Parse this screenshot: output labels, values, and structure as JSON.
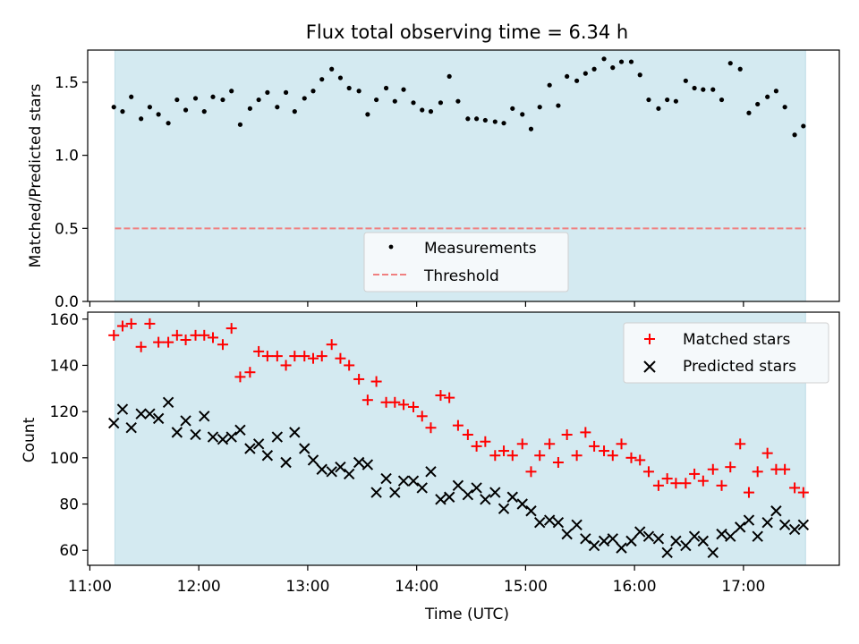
{
  "chart_data": [
    {
      "type": "scatter",
      "title": "Flux total observing time = 6.34 h",
      "xlabel": "",
      "ylabel": "Matched/Predicted stars",
      "ylim": [
        0.0,
        1.72
      ],
      "yticks": [
        0.0,
        0.5,
        1.0,
        1.5
      ],
      "ytick_labels": [
        "0.0",
        "0.5",
        "1.0",
        "1.5"
      ],
      "legend_placement": "lower-center",
      "shaded_span": {
        "start": 11.23,
        "end": 17.57,
        "color": "#d4eaf1"
      },
      "series": [
        {
          "name": "Measurements",
          "marker": "dot",
          "color": "#000000",
          "x": [
            11.22,
            11.3,
            11.38,
            11.47,
            11.55,
            11.63,
            11.72,
            11.8,
            11.88,
            11.97,
            12.05,
            12.13,
            12.22,
            12.3,
            12.38,
            12.47,
            12.55,
            12.63,
            12.72,
            12.8,
            12.88,
            12.97,
            13.05,
            13.13,
            13.22,
            13.3,
            13.38,
            13.47,
            13.55,
            13.63,
            13.72,
            13.8,
            13.88,
            13.97,
            14.05,
            14.13,
            14.22,
            14.3,
            14.38,
            14.47,
            14.55,
            14.63,
            14.72,
            14.8,
            14.88,
            14.97,
            15.05,
            15.13,
            15.22,
            15.3,
            15.38,
            15.47,
            15.55,
            15.63,
            15.72,
            15.8,
            15.88,
            15.97,
            16.05,
            16.13,
            16.22,
            16.3,
            16.38,
            16.47,
            16.55,
            16.63,
            16.72,
            16.8,
            16.88,
            16.97,
            17.05,
            17.13,
            17.22,
            17.3,
            17.38,
            17.47,
            17.55
          ],
          "y": [
            1.33,
            1.3,
            1.4,
            1.25,
            1.33,
            1.28,
            1.22,
            1.38,
            1.31,
            1.39,
            1.3,
            1.4,
            1.38,
            1.44,
            1.21,
            1.32,
            1.38,
            1.43,
            1.33,
            1.43,
            1.3,
            1.39,
            1.44,
            1.52,
            1.59,
            1.53,
            1.46,
            1.44,
            1.28,
            1.38,
            1.46,
            1.37,
            1.45,
            1.36,
            1.31,
            1.3,
            1.36,
            1.54,
            1.37,
            1.25,
            1.25,
            1.24,
            1.23,
            1.22,
            1.32,
            1.28,
            1.18,
            1.33,
            1.48,
            1.34,
            1.54,
            1.51,
            1.56,
            1.59,
            1.66,
            1.6,
            1.64,
            1.64,
            1.55,
            1.38,
            1.32,
            1.38,
            1.37,
            1.51,
            1.46,
            1.45,
            1.45,
            1.38,
            1.63,
            1.59,
            1.29,
            1.35,
            1.4,
            1.44,
            1.33,
            1.14,
            1.2
          ]
        },
        {
          "name": "Threshold",
          "marker": "dashed-line",
          "color": "#f08080",
          "x": [
            11.23,
            17.57
          ],
          "y": [
            0.5,
            0.5
          ]
        }
      ]
    },
    {
      "type": "scatter",
      "title": "",
      "xlabel": "Time (UTC)",
      "ylabel": "Count",
      "xlim": [
        10.98,
        17.88
      ],
      "ylim": [
        53.5,
        163
      ],
      "xticks": [
        11,
        12,
        13,
        14,
        15,
        16,
        17
      ],
      "xtick_labels": [
        "11:00",
        "12:00",
        "13:00",
        "14:00",
        "15:00",
        "16:00",
        "17:00"
      ],
      "yticks": [
        60,
        80,
        100,
        120,
        140,
        160
      ],
      "ytick_labels": [
        "60",
        "80",
        "100",
        "120",
        "140",
        "160"
      ],
      "legend_placement": "upper-right",
      "shaded_span": {
        "start": 11.23,
        "end": 17.57,
        "color": "#d4eaf1"
      },
      "series": [
        {
          "name": "Matched stars",
          "marker": "plus",
          "color": "#ff0000",
          "x": [
            11.22,
            11.3,
            11.38,
            11.47,
            11.55,
            11.63,
            11.72,
            11.8,
            11.88,
            11.97,
            12.05,
            12.13,
            12.22,
            12.3,
            12.38,
            12.47,
            12.55,
            12.63,
            12.72,
            12.8,
            12.88,
            12.97,
            13.05,
            13.13,
            13.22,
            13.3,
            13.38,
            13.47,
            13.55,
            13.63,
            13.72,
            13.8,
            13.88,
            13.97,
            14.05,
            14.13,
            14.22,
            14.3,
            14.38,
            14.47,
            14.55,
            14.63,
            14.72,
            14.8,
            14.88,
            14.97,
            15.05,
            15.13,
            15.22,
            15.3,
            15.38,
            15.47,
            15.55,
            15.63,
            15.72,
            15.8,
            15.88,
            15.97,
            16.05,
            16.13,
            16.22,
            16.3,
            16.38,
            16.47,
            16.55,
            16.63,
            16.72,
            16.8,
            16.88,
            16.97,
            17.05,
            17.13,
            17.22,
            17.3,
            17.38,
            17.47,
            17.55
          ],
          "y": [
            153,
            157,
            158,
            148,
            158,
            150,
            150,
            153,
            151,
            153,
            153,
            152,
            149,
            156,
            135,
            137,
            146,
            144,
            144,
            140,
            144,
            144,
            143,
            144,
            149,
            143,
            140,
            134,
            125,
            133,
            124,
            124,
            123,
            122,
            118,
            113,
            127,
            126,
            114,
            110,
            105,
            107,
            101,
            103,
            101,
            106,
            94,
            101,
            106,
            98,
            110,
            101,
            111,
            105,
            103,
            101,
            106,
            100,
            99,
            94,
            88,
            91,
            89,
            89,
            93,
            90,
            95,
            88,
            96,
            106,
            85,
            94,
            102,
            95,
            95,
            87,
            85
          ]
        },
        {
          "name": "Predicted stars",
          "marker": "x",
          "color": "#000000",
          "x": [
            11.22,
            11.3,
            11.38,
            11.47,
            11.55,
            11.63,
            11.72,
            11.8,
            11.88,
            11.97,
            12.05,
            12.13,
            12.22,
            12.3,
            12.38,
            12.47,
            12.55,
            12.63,
            12.72,
            12.8,
            12.88,
            12.97,
            13.05,
            13.13,
            13.22,
            13.3,
            13.38,
            13.47,
            13.55,
            13.63,
            13.72,
            13.8,
            13.88,
            13.97,
            14.05,
            14.13,
            14.22,
            14.3,
            14.38,
            14.47,
            14.55,
            14.63,
            14.72,
            14.8,
            14.88,
            14.97,
            15.05,
            15.13,
            15.22,
            15.3,
            15.38,
            15.47,
            15.55,
            15.63,
            15.72,
            15.8,
            15.88,
            15.97,
            16.05,
            16.13,
            16.22,
            16.3,
            16.38,
            16.47,
            16.55,
            16.63,
            16.72,
            16.8,
            16.88,
            16.97,
            17.05,
            17.13,
            17.22,
            17.3,
            17.38,
            17.47,
            17.55
          ],
          "y": [
            115,
            121,
            113,
            119,
            119,
            117,
            124,
            111,
            116,
            110,
            118,
            109,
            108,
            109,
            112,
            104,
            106,
            101,
            109,
            98,
            111,
            104,
            99,
            95,
            94,
            96,
            93,
            98,
            97,
            85,
            91,
            85,
            90,
            90,
            87,
            94,
            82,
            83,
            88,
            84,
            87,
            82,
            85,
            78,
            83,
            80,
            77,
            72,
            73,
            72,
            67,
            71,
            65,
            62,
            64,
            65,
            61,
            64,
            68,
            66,
            65,
            59,
            64,
            62,
            66,
            64,
            59,
            67,
            66,
            70,
            73,
            66,
            72,
            77,
            71,
            69,
            71
          ]
        }
      ]
    }
  ]
}
